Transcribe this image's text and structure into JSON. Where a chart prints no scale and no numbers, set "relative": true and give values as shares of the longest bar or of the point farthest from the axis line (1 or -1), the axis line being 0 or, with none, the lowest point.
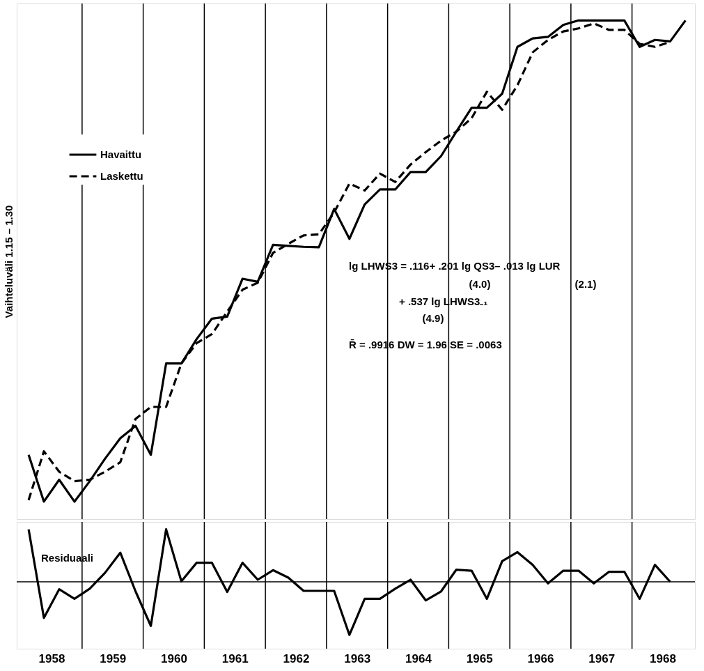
{
  "chart_data": [
    {
      "type": "line",
      "ylabel": "Vaihteluväli  1.15 – 1.30",
      "relative": true,
      "legend": "top left",
      "grid": "x",
      "tick_labels": false,
      "marker": "none",
      "x": [
        1958.125,
        1958.375,
        1958.625,
        1958.875,
        1959.125,
        1959.375,
        1959.625,
        1959.875,
        1960.125,
        1960.375,
        1960.625,
        1960.875,
        1961.125,
        1961.375,
        1961.625,
        1961.875,
        1962.125,
        1962.375,
        1962.625,
        1962.875,
        1963.125,
        1963.375,
        1963.625,
        1963.875,
        1964.125,
        1964.375,
        1964.625,
        1964.875,
        1965.125,
        1965.375,
        1965.625,
        1965.875,
        1966.125,
        1966.375,
        1966.625,
        1966.875,
        1967.125,
        1967.375,
        1967.625,
        1967.875,
        1968.125,
        1968.375,
        1968.625,
        1968.875
      ],
      "xlim": [
        1957.93,
        1969.03
      ],
      "xticks": [
        {
          "value": 1959,
          "label": null
        },
        {
          "value": 1960,
          "label": null
        },
        {
          "value": 1961,
          "label": null
        },
        {
          "value": 1962,
          "label": null
        },
        {
          "value": 1963,
          "label": null
        },
        {
          "value": 1964,
          "label": null
        },
        {
          "value": 1965,
          "label": null
        },
        {
          "value": 1966,
          "label": null
        },
        {
          "value": 1967,
          "label": null
        },
        {
          "value": 1968,
          "label": null
        }
      ],
      "series": [
        {
          "name": "Havaittu",
          "color": "#000000",
          "line_style": "solid",
          "values": [
            0.129,
            0.035,
            0.079,
            0.035,
            0.076,
            0.121,
            0.162,
            0.187,
            0.129,
            0.312,
            0.312,
            0.361,
            0.402,
            0.406,
            0.482,
            0.476,
            0.55,
            0.548,
            0.546,
            0.545,
            0.622,
            0.562,
            0.631,
            0.661,
            0.661,
            0.696,
            0.696,
            0.728,
            0.777,
            0.825,
            0.825,
            0.853,
            0.947,
            0.964,
            0.967,
            0.991,
            1,
            1,
            1,
            1,
            0.947,
            0.961,
            0.958,
            1
          ]
        },
        {
          "name": "Laskettu",
          "color": "#000000",
          "line_style": "dashed",
          "values": [
            0.038,
            0.136,
            0.095,
            0.076,
            0.079,
            0.095,
            0.114,
            0.201,
            0.225,
            0.225,
            0.312,
            0.353,
            0.371,
            0.416,
            0.46,
            0.474,
            0.534,
            0.552,
            0.569,
            0.571,
            0.615,
            0.673,
            0.659,
            0.693,
            0.676,
            0.711,
            0.736,
            0.759,
            0.777,
            0.804,
            0.857,
            0.821,
            0.87,
            0.936,
            0.961,
            0.978,
            0.984,
            0.994,
            0.981,
            0.981,
            0.953,
            0.947,
            0.957,
            null
          ]
        }
      ],
      "annotations": [
        "lg LHWS3 =   .116+  .201 lg QS3–   .013 lg LUR",
        "(4.0)",
        "(2.1)",
        "+ .537 lg LHWS3₋₁",
        "(4.9)",
        "R̄ =   .9916  DW = 1.96  SE =   .0063"
      ]
    },
    {
      "type": "line",
      "relative": true,
      "grid": "x",
      "tick_labels": "x",
      "marker": "none",
      "xlim": [
        1957.93,
        1969.03
      ],
      "xticks": [
        {
          "value": 1958.5,
          "label": "1958"
        },
        {
          "value": 1959,
          "label": null
        },
        {
          "value": 1959.5,
          "label": "1959"
        },
        {
          "value": 1960,
          "label": null
        },
        {
          "value": 1960.5,
          "label": "1960"
        },
        {
          "value": 1961,
          "label": null
        },
        {
          "value": 1961.5,
          "label": "1961"
        },
        {
          "value": 1962,
          "label": null
        },
        {
          "value": 1962.5,
          "label": "1962"
        },
        {
          "value": 1963,
          "label": null
        },
        {
          "value": 1963.5,
          "label": "1963"
        },
        {
          "value": 1964,
          "label": null
        },
        {
          "value": 1964.5,
          "label": "1964"
        },
        {
          "value": 1965,
          "label": null
        },
        {
          "value": 1965.5,
          "label": "1965"
        },
        {
          "value": 1966,
          "label": null
        },
        {
          "value": 1966.5,
          "label": "1966"
        },
        {
          "value": 1967,
          "label": null
        },
        {
          "value": 1967.5,
          "label": "1967"
        },
        {
          "value": 1968,
          "label": null
        },
        {
          "value": 1968.5,
          "label": "1968"
        }
      ],
      "series": [
        {
          "color": "#000000",
          "line_style": "solid",
          "x": [
            1958.125,
            1958.375,
            1958.625,
            1958.875,
            1959.125,
            1959.375,
            1959.625,
            1959.875,
            1960.125,
            1960.375,
            1960.625,
            1960.875,
            1961.125,
            1961.375,
            1961.625,
            1961.875,
            1962.125,
            1962.375,
            1962.625,
            1962.875,
            1963.125,
            1963.375,
            1963.625,
            1963.875,
            1964.125,
            1964.375,
            1964.625,
            1964.875,
            1965.125,
            1965.375,
            1965.625,
            1965.875,
            1966.125,
            1966.375,
            1966.625,
            1966.875,
            1967.125,
            1967.375,
            1967.625,
            1967.875,
            1968.125,
            1968.375,
            1968.625
          ],
          "values": [
            0.99,
            -0.68,
            -0.14,
            -0.32,
            -0.13,
            0.17,
            0.55,
            -0.18,
            -0.83,
            0.99,
            0.01,
            0.36,
            0.36,
            -0.19,
            0.36,
            0.04,
            0.22,
            0.08,
            -0.17,
            -0.17,
            -0.17,
            -1,
            -0.32,
            -0.32,
            -0.13,
            0.04,
            -0.35,
            -0.18,
            0.23,
            0.21,
            -0.32,
            0.39,
            0.56,
            0.32,
            -0.03,
            0.21,
            0.21,
            -0.03,
            0.19,
            0.19,
            -0.32,
            0.32,
            0
          ]
        }
      ],
      "annotations": [
        "Residuaali"
      ]
    }
  ]
}
